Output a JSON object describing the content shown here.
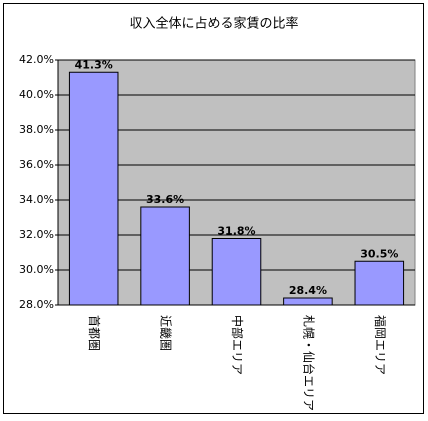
{
  "chart_data": {
    "type": "bar",
    "title": "収入全体に占める家賃の比率",
    "categories": [
      "首都圏",
      "近畿圏",
      "中部エリア",
      "札幌・仙台エリア",
      "福岡エリア"
    ],
    "values": [
      41.3,
      33.6,
      31.8,
      28.4,
      30.5
    ],
    "value_labels": [
      "41.3%",
      "33.6%",
      "31.8%",
      "28.4%",
      "30.5%"
    ],
    "color": "#9999ff",
    "ylim": [
      28,
      42
    ],
    "yticks": [
      {
        "value": 28,
        "label": "28.0%"
      },
      {
        "value": 30,
        "label": "30.0%"
      },
      {
        "value": 32,
        "label": "32.0%"
      },
      {
        "value": 34,
        "label": "34.0%"
      },
      {
        "value": 36,
        "label": "36.0%"
      },
      {
        "value": 38,
        "label": "38.0%"
      },
      {
        "value": 40,
        "label": "40.0%"
      },
      {
        "value": 42,
        "label": "42.0%"
      }
    ],
    "grid": true
  }
}
